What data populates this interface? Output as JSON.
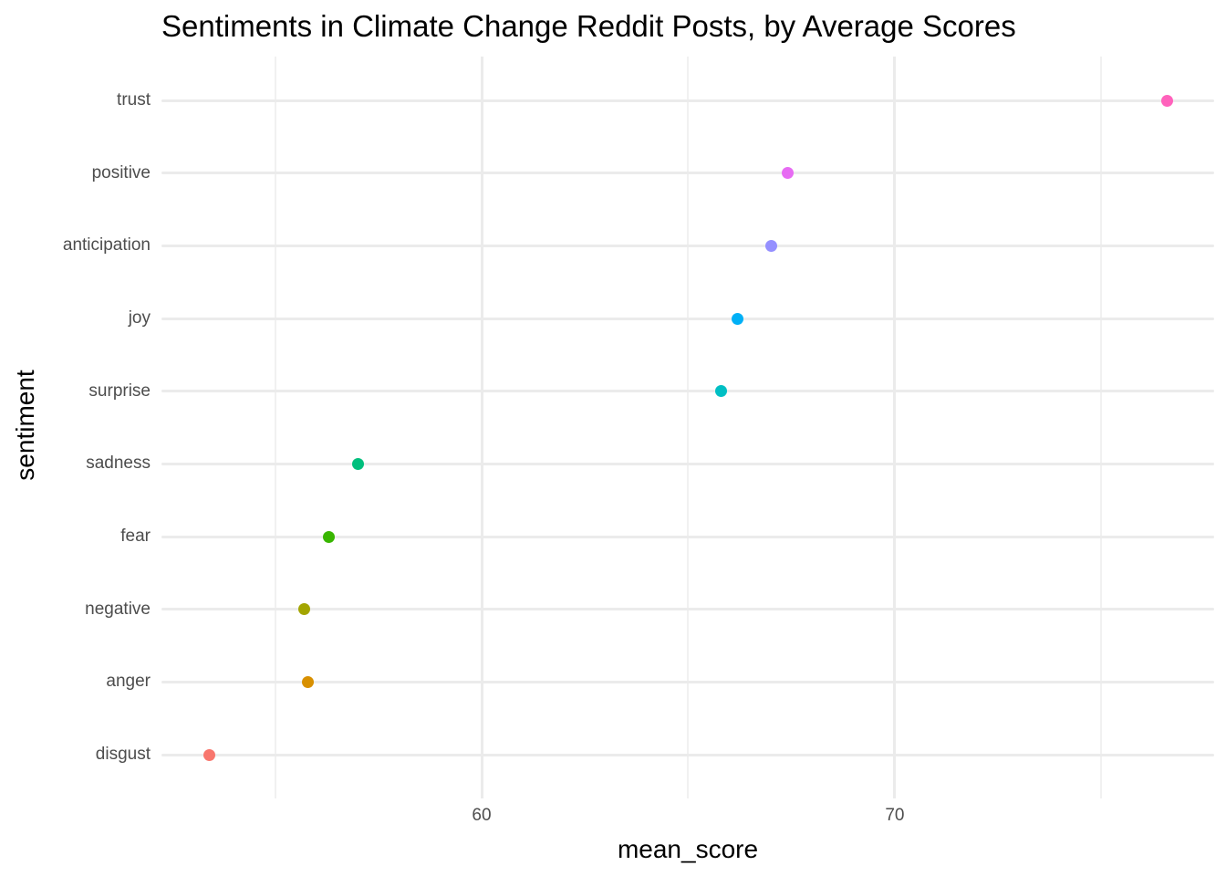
{
  "chart_data": {
    "type": "scatter",
    "title": "Sentiments in Climate Change Reddit Posts, by Average Scores",
    "xlabel": "mean_score",
    "ylabel": "sentiment",
    "categories": [
      "trust",
      "positive",
      "anticipation",
      "joy",
      "surprise",
      "sadness",
      "fear",
      "negative",
      "anger",
      "disgust"
    ],
    "values": [
      76.6,
      67.4,
      67.0,
      66.2,
      65.8,
      57.0,
      56.3,
      55.7,
      55.8,
      53.4
    ],
    "point_colors": [
      "#FF62BC",
      "#E76BF3",
      "#9590FF",
      "#00B0F6",
      "#00BFC4",
      "#00BF7D",
      "#39B600",
      "#A3A500",
      "#D89000",
      "#F8766D"
    ],
    "x_major_ticks": [
      60,
      70
    ],
    "x_major_tick_labels": [
      "60",
      "70"
    ],
    "x_minor_ticks": [
      55,
      65,
      75
    ],
    "xlim": [
      52.25,
      77.73
    ],
    "grid": "on",
    "legend": "none",
    "background_color": "#FFFFFF",
    "grid_major_color": "#EBEBEB",
    "grid_minor_color": "#F1F1F1",
    "axis_text_color": "#4D4D4D",
    "title_color": "#000000"
  }
}
